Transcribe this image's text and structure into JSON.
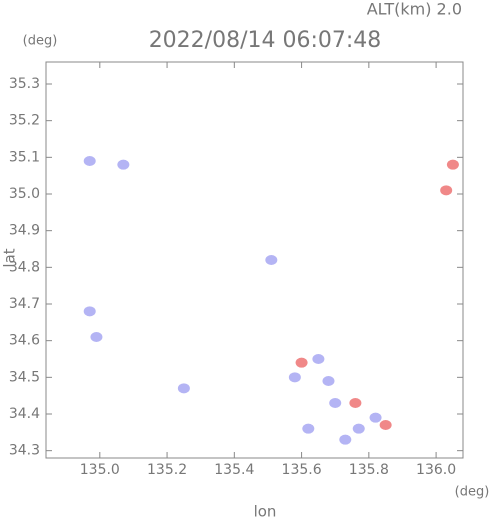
{
  "chart_data": {
    "type": "scatter",
    "title": "2022/08/14 06:07:48",
    "altitude_label": "ALT(km) 2.0",
    "y_unit": "(deg)",
    "x_unit": "(deg)",
    "x_label": "lon",
    "y_label": "lat",
    "xlim": [
      134.84,
      136.08
    ],
    "ylim": [
      34.28,
      35.36
    ],
    "xticks": [
      {
        "value": 135.0,
        "label": "135.0"
      },
      135.2,
      135.4,
      135.6,
      135.8,
      {
        "value": 136.0,
        "label": "136.0"
      }
    ],
    "yticks": [
      34.3,
      34.4,
      34.5,
      34.6,
      34.7,
      34.8,
      34.9,
      {
        "value": 35.0,
        "label": "35.0"
      },
      35.1,
      35.2,
      35.3
    ],
    "series": [
      {
        "color": "#b4b4f4",
        "x": [
          134.97,
          135.07,
          134.97,
          134.99,
          135.25,
          135.51,
          135.58,
          135.65,
          135.68,
          135.7,
          135.73,
          135.77,
          135.82,
          135.62
        ],
        "y": [
          35.09,
          35.08,
          34.68,
          34.61,
          34.47,
          34.82,
          34.5,
          34.55,
          34.49,
          34.43,
          34.33,
          34.36,
          34.39,
          34.36
        ]
      },
      {
        "color": "#f08888",
        "x": [
          136.05,
          136.03,
          135.6,
          135.76,
          135.85
        ],
        "y": [
          35.08,
          35.01,
          34.54,
          34.43,
          34.37
        ]
      }
    ]
  }
}
